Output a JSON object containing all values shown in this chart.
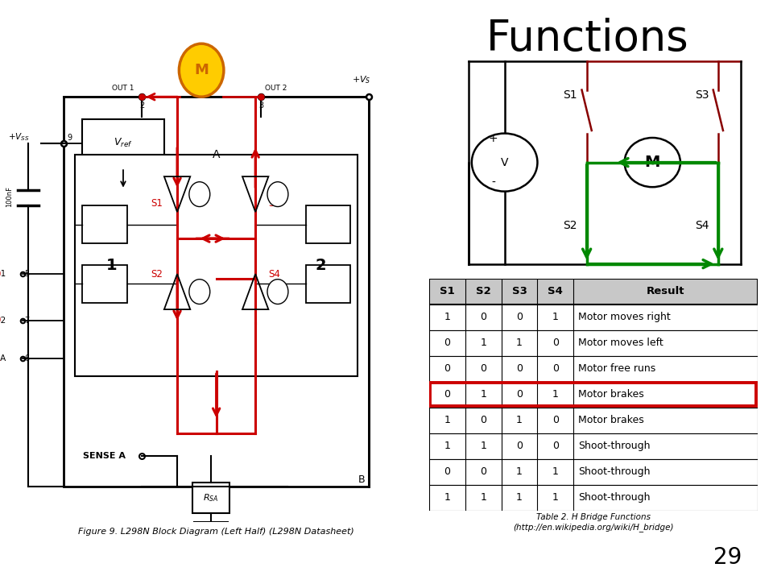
{
  "title": "Functions",
  "title_fontsize": 38,
  "page_number": "29",
  "fig_caption": "Figure 9. L298N Block Diagram (Left Half) (L298N Datasheet)",
  "table_caption": "Table 2. H Bridge Functions\n(http://en.wikipedia.org/wiki/H_bridge)",
  "table_headers": [
    "S1",
    "S2",
    "S3",
    "S4",
    "Result"
  ],
  "table_rows": [
    [
      "1",
      "0",
      "0",
      "1",
      "Motor moves right"
    ],
    [
      "0",
      "1",
      "1",
      "0",
      "Motor moves left"
    ],
    [
      "0",
      "0",
      "0",
      "0",
      "Motor free runs"
    ],
    [
      "0",
      "1",
      "0",
      "1",
      "Motor brakes"
    ],
    [
      "1",
      "0",
      "1",
      "0",
      "Motor brakes"
    ],
    [
      "1",
      "1",
      "0",
      "0",
      "Shoot-through"
    ],
    [
      "0",
      "0",
      "1",
      "1",
      "Shoot-through"
    ],
    [
      "1",
      "1",
      "1",
      "1",
      "Shoot-through"
    ]
  ],
  "highlight_row": 3,
  "highlight_color": "#cc0000",
  "background_color": "#ffffff",
  "green_color": "#008800",
  "red_color": "#cc0000",
  "dark_red_color": "#880000",
  "black_color": "#000000",
  "gray_header": "#c8c8c8",
  "motor_fill": "#ffcc00",
  "motor_edge": "#cc6600"
}
